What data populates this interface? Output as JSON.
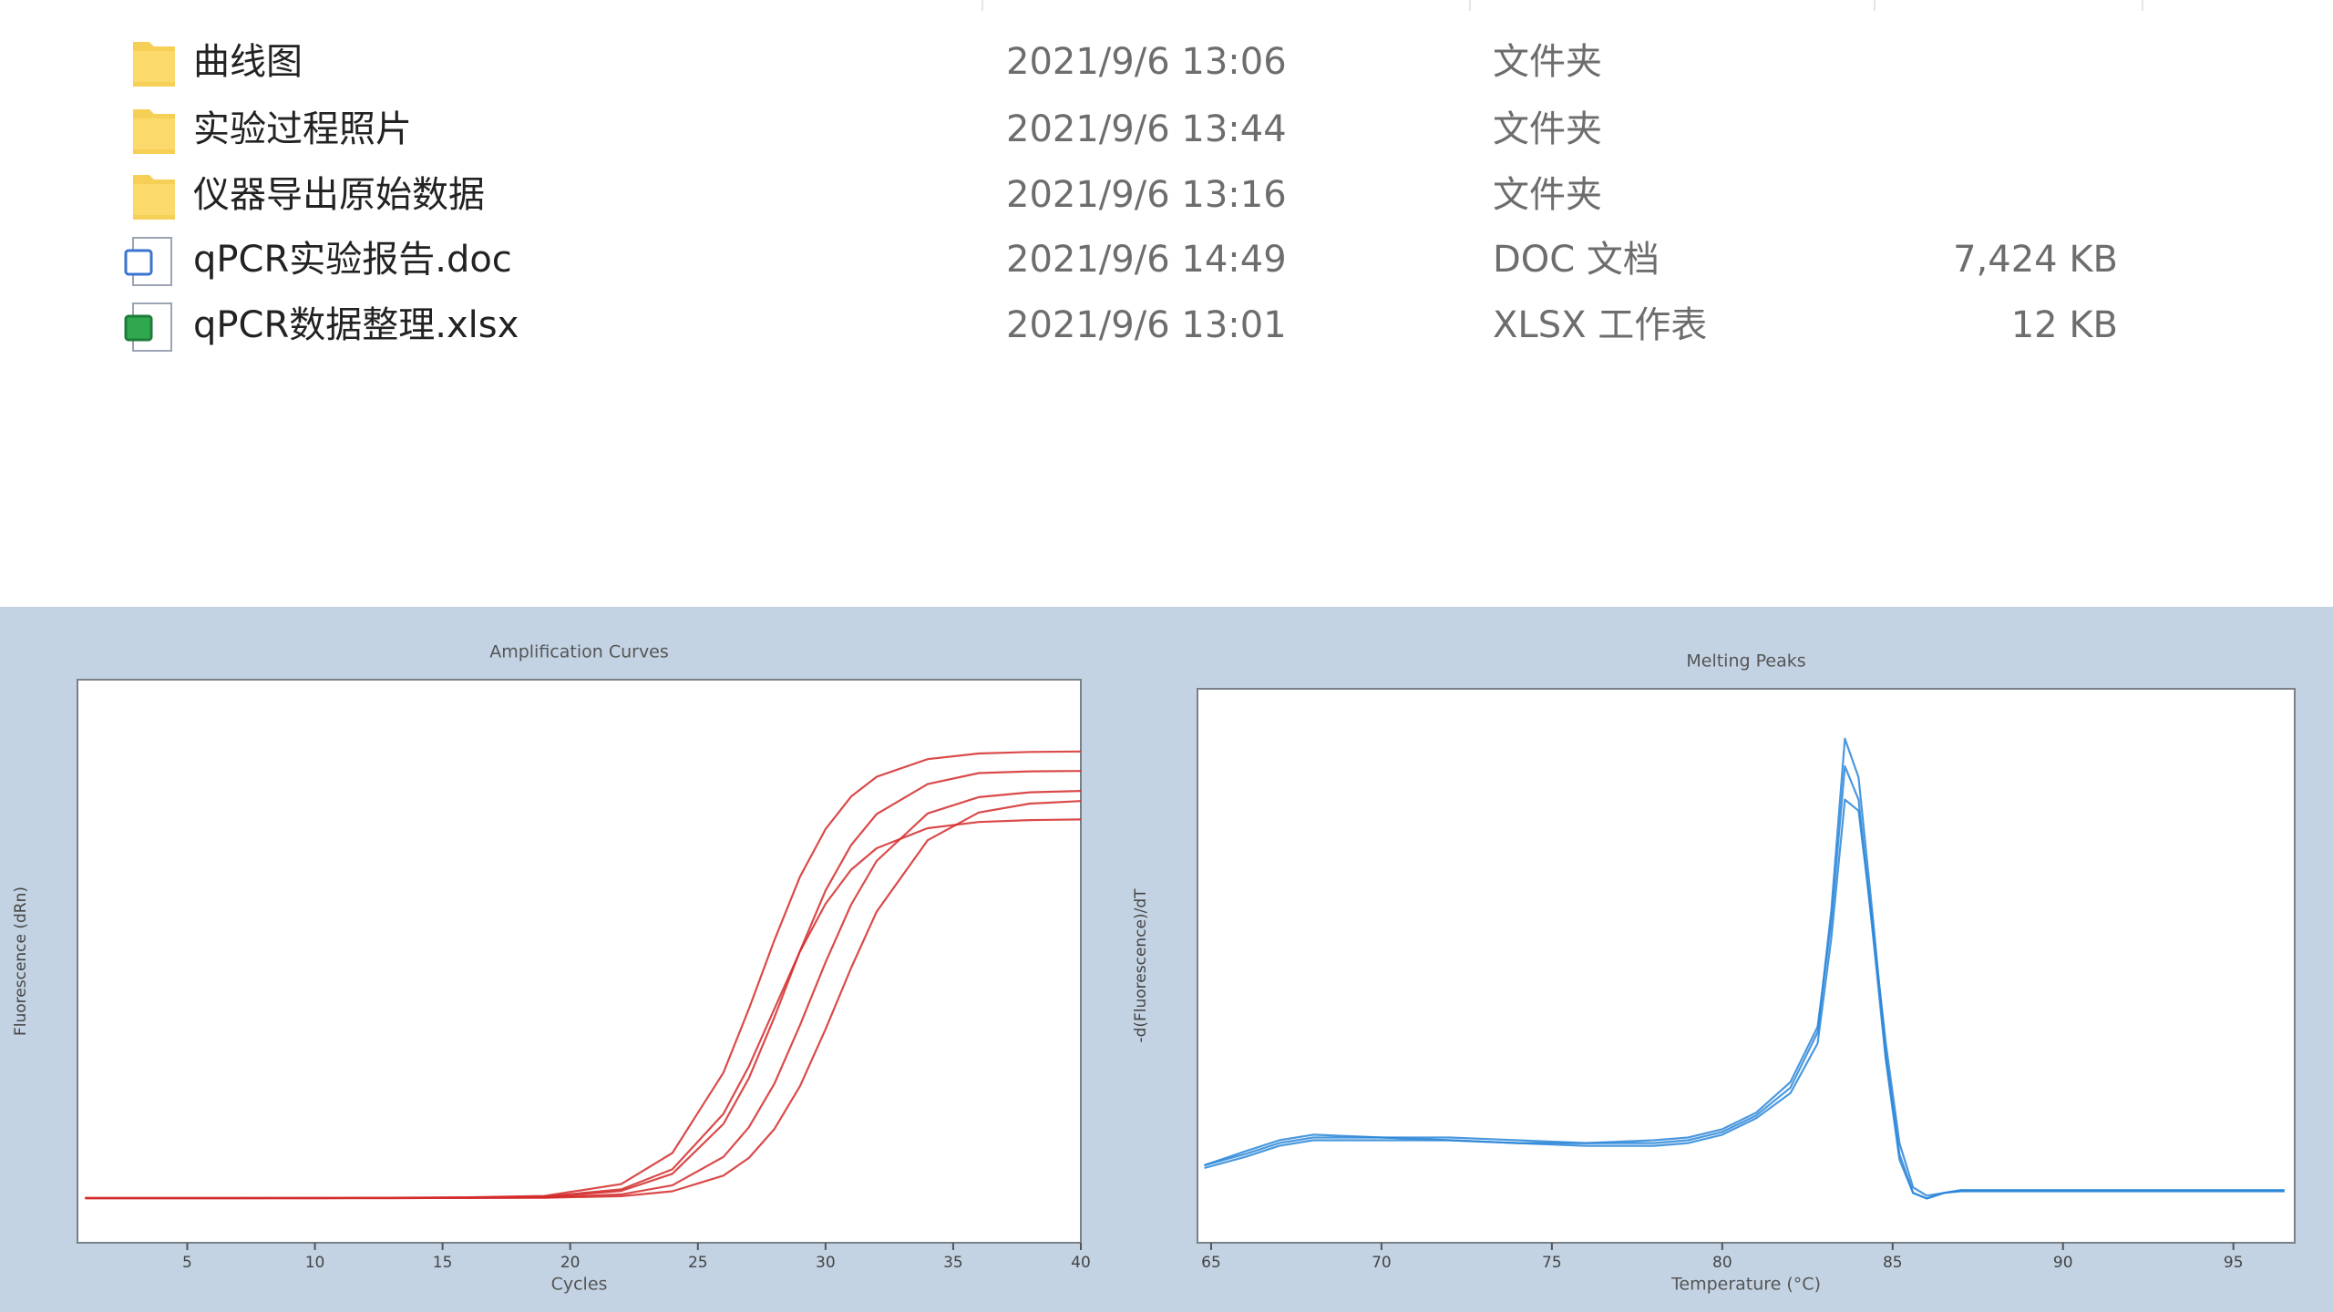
{
  "files": [
    {
      "name": "曲线图",
      "modified": "2021/9/6 13:06",
      "type": "文件夹"
    },
    {
      "name": "实验过程照片",
      "modified": "2021/9/6 13:44",
      "type": "文件夹"
    },
    {
      "name": "仪器导出原始数据",
      "modified": "2021/9/6 13:16",
      "type": "文件夹"
    },
    {
      "name": "qPCR实验报告.doc",
      "modified": "2021/9/6 14:49",
      "type": "DOC 文档",
      "size": "7,424 KB"
    },
    {
      "name": "qPCR数据整理.xlsx",
      "modified": "2021/9/6 13:01",
      "type": "XLSX 工作表",
      "size": "12 KB"
    }
  ],
  "chart_data": [
    {
      "type": "line",
      "title": "Amplification Curves",
      "x_label": "Cycles",
      "y_label": "Fluorescence (dRn)",
      "x": [
        1,
        4,
        7,
        10,
        13,
        16,
        19,
        22,
        24,
        26,
        27,
        28,
        29,
        30,
        31,
        32,
        34,
        36,
        38,
        40
      ],
      "xlim": [
        0.7,
        40
      ],
      "xticks": [
        5,
        10,
        15,
        20,
        25,
        30,
        35,
        40
      ],
      "ylim": [
        -230,
        2670
      ],
      "series": [
        {
          "color": "#d42a2a",
          "values": [
            0,
            0,
            0,
            1,
            2,
            4,
            11,
            72,
            232,
            646,
            975,
            1329,
            1655,
            1900,
            2068,
            2170,
            2261,
            2290,
            2298,
            2300
          ]
        },
        {
          "color": "#d42a2a",
          "values": [
            0,
            0,
            0,
            0,
            1,
            2,
            5,
            37,
            125,
            382,
            618,
            932,
            1272,
            1583,
            1818,
            1978,
            2132,
            2189,
            2198,
            2200
          ]
        },
        {
          "color": "#d42a2a",
          "values": [
            0,
            0,
            0,
            0,
            0,
            1,
            3,
            19,
            66,
            212,
            365,
            590,
            890,
            1214,
            1511,
            1736,
            1981,
            2065,
            2090,
            2097
          ]
        },
        {
          "color": "#d42a2a",
          "values": [
            0,
            0,
            0,
            0,
            0,
            1,
            2,
            10,
            35,
            116,
            207,
            356,
            576,
            869,
            1185,
            1475,
            1843,
            1986,
            2032,
            2045
          ]
        },
        {
          "color": "#d42a2a",
          "values": [
            0,
            0,
            0,
            0,
            1,
            3,
            8,
            45,
            148,
            434,
            679,
            975,
            1270,
            1515,
            1691,
            1802,
            1905,
            1937,
            1947,
            1950
          ]
        }
      ]
    },
    {
      "type": "line",
      "title": "Melting Peaks",
      "x_label": "Temperature (°C)",
      "y_label": "-d(Fluorescence)/dT",
      "x": [
        64.8,
        66,
        67,
        68,
        70,
        72,
        74,
        76,
        78,
        79,
        80,
        81,
        82,
        82.8,
        83.2,
        83.6,
        84,
        84.4,
        84.8,
        85.2,
        85.6,
        86,
        86.5,
        87,
        90,
        93,
        96.5
      ],
      "xlim": [
        64.6,
        96.8
      ],
      "xticks": [
        65,
        70,
        75,
        80,
        85,
        90,
        95
      ],
      "ylim": [
        0,
        100
      ],
      "series": [
        {
          "color": "#2a86d8",
          "values": [
            14,
            16,
            18,
            19,
            19,
            19,
            18.5,
            18,
            18,
            18.5,
            20,
            23,
            28,
            38,
            60,
            91,
            84,
            60,
            34,
            16,
            9,
            8,
            9,
            9.4,
            9.4,
            9.4,
            9.4
          ]
        },
        {
          "color": "#2a86d8",
          "values": [
            14,
            16.5,
            18.5,
            19.5,
            19,
            18.5,
            18,
            18,
            18.5,
            19,
            20.5,
            23.5,
            29,
            39,
            58,
            86,
            80,
            57,
            33,
            15,
            9,
            8,
            9,
            9.5,
            9.5,
            9.5,
            9.5
          ]
        },
        {
          "color": "#2a86d8",
          "values": [
            13.5,
            15.5,
            17.5,
            18.5,
            18.5,
            18.5,
            18,
            17.5,
            17.5,
            18,
            19.5,
            22.5,
            27,
            36,
            55,
            80,
            78,
            58,
            36,
            18,
            10,
            8.5,
            9,
            9.3,
            9.3,
            9.3,
            9.3
          ]
        }
      ]
    }
  ]
}
